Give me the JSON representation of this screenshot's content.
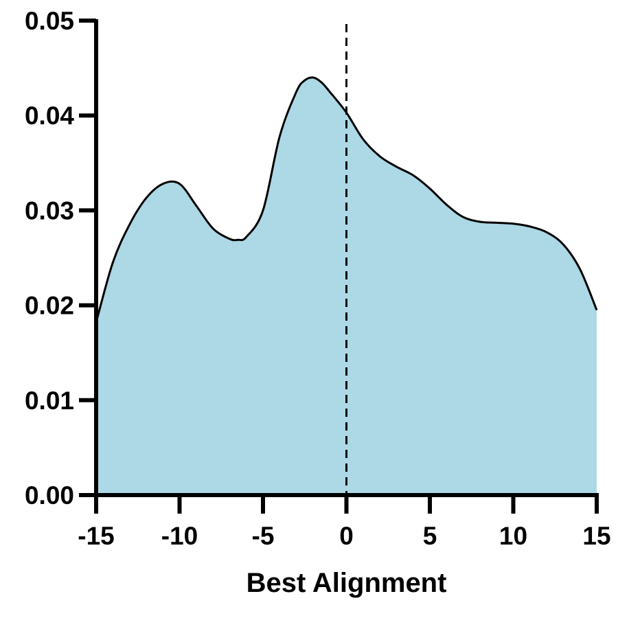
{
  "chart_data": {
    "type": "area",
    "title": "",
    "xlabel": "Best Alignment",
    "ylabel": "",
    "xlim": [
      -15,
      15
    ],
    "ylim": [
      0,
      0.05
    ],
    "x_ticks": [
      -15,
      -10,
      -5,
      0,
      5,
      10,
      15
    ],
    "x_tick_labels": [
      "-15",
      "-10",
      "-5",
      "0",
      "5",
      "10",
      "15"
    ],
    "y_ticks": [
      0,
      0.01,
      0.02,
      0.03,
      0.04,
      0.05
    ],
    "y_tick_labels": [
      "0.00",
      "0.01",
      "0.02",
      "0.03",
      "0.04",
      "0.05"
    ],
    "grid": false,
    "legend": "none",
    "reference_line": {
      "axis": "x",
      "value": 0,
      "style": "dashed",
      "color": "#000000"
    },
    "colors": {
      "fill": "#add8e6",
      "line": "#000000",
      "axis": "#000000"
    },
    "series": [
      {
        "x": [
          -15,
          -14,
          -13,
          -12,
          -11,
          -10,
          -9,
          -8,
          -7,
          -6.5,
          -6,
          -5,
          -4,
          -3,
          -2.5,
          -2,
          -1.5,
          -1,
          0,
          1,
          2,
          3,
          4,
          5,
          6,
          7,
          8,
          9,
          10,
          11,
          12,
          13,
          14,
          15
        ],
        "y": [
          0.0182,
          0.0245,
          0.0285,
          0.0313,
          0.0328,
          0.0328,
          0.0305,
          0.0281,
          0.027,
          0.0269,
          0.0272,
          0.03,
          0.0378,
          0.0425,
          0.0437,
          0.044,
          0.0435,
          0.0425,
          0.0403,
          0.0375,
          0.0357,
          0.0346,
          0.0337,
          0.0323,
          0.0306,
          0.0293,
          0.0288,
          0.0287,
          0.0286,
          0.0283,
          0.0277,
          0.0264,
          0.0238,
          0.0195
        ]
      }
    ]
  }
}
